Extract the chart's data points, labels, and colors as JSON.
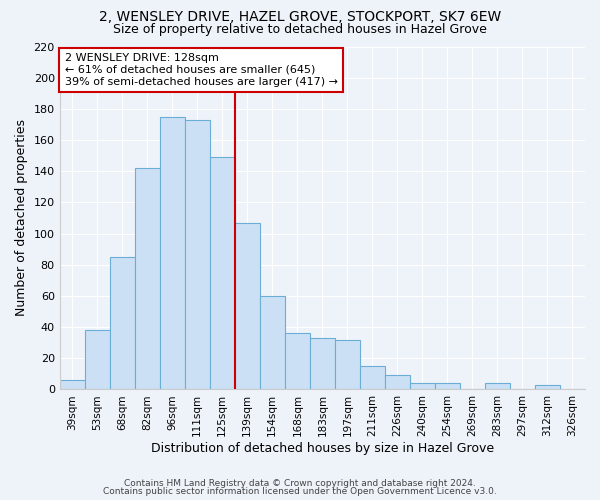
{
  "title1": "2, WENSLEY DRIVE, HAZEL GROVE, STOCKPORT, SK7 6EW",
  "title2": "Size of property relative to detached houses in Hazel Grove",
  "xlabel": "Distribution of detached houses by size in Hazel Grove",
  "ylabel": "Number of detached properties",
  "bar_labels": [
    "39sqm",
    "53sqm",
    "68sqm",
    "82sqm",
    "96sqm",
    "111sqm",
    "125sqm",
    "139sqm",
    "154sqm",
    "168sqm",
    "183sqm",
    "197sqm",
    "211sqm",
    "226sqm",
    "240sqm",
    "254sqm",
    "269sqm",
    "283sqm",
    "297sqm",
    "312sqm",
    "326sqm"
  ],
  "bar_values": [
    6,
    38,
    85,
    142,
    175,
    173,
    149,
    107,
    60,
    36,
    33,
    32,
    15,
    9,
    4,
    4,
    0,
    4,
    0,
    3,
    0
  ],
  "bar_color": "#cce0f5",
  "bar_edge_color": "#6aaed6",
  "vline_color": "#cc0000",
  "annotation_title": "2 WENSLEY DRIVE: 128sqm",
  "annotation_line1": "← 61% of detached houses are smaller (645)",
  "annotation_line2": "39% of semi-detached houses are larger (417) →",
  "annotation_box_color": "#ffffff",
  "annotation_box_edge": "#cc0000",
  "ylim": [
    0,
    220
  ],
  "yticks": [
    0,
    20,
    40,
    60,
    80,
    100,
    120,
    140,
    160,
    180,
    200,
    220
  ],
  "footer1": "Contains HM Land Registry data © Crown copyright and database right 2024.",
  "footer2": "Contains public sector information licensed under the Open Government Licence v3.0.",
  "bg_color": "#eef2f9"
}
